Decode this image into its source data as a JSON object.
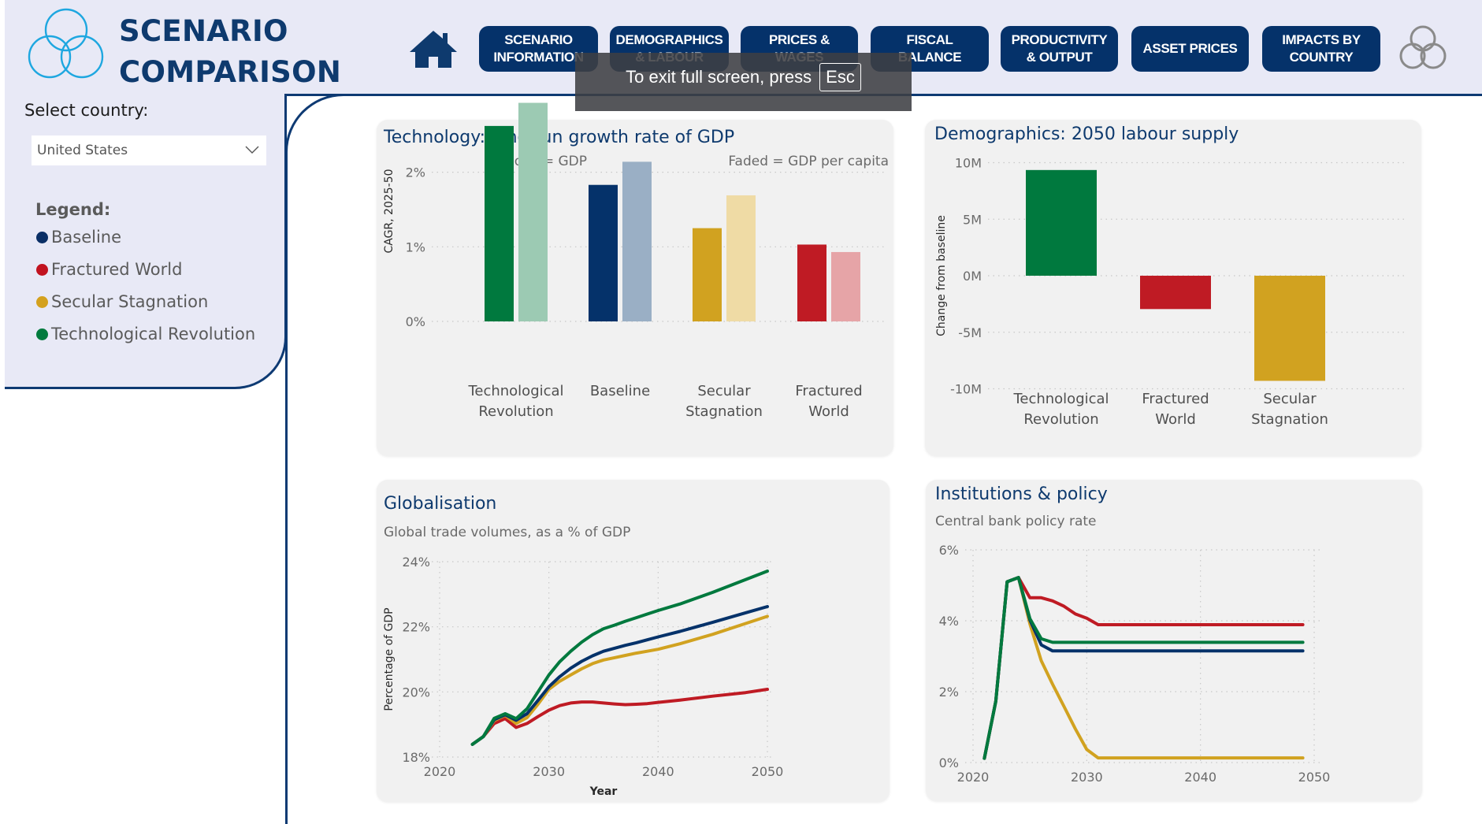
{
  "header": {
    "title_line1": "SCENARIO",
    "title_line2": "COMPARISON",
    "nav": [
      {
        "label": "SCENARIO\nINFORMATION"
      },
      {
        "label": "DEMOGRAPHICS\n& LABOUR"
      },
      {
        "label": "PRICES &\nWAGES"
      },
      {
        "label": "FISCAL\nBALANCE"
      },
      {
        "label": "PRODUCTIVITY\n& OUTPUT"
      },
      {
        "label": "ASSET PRICES"
      },
      {
        "label": "IMPACTS BY\nCOUNTRY"
      }
    ],
    "home_icon": "home-icon",
    "logo_icon": "three-circles-logo"
  },
  "fullscreen_notice": {
    "text": "To exit full screen, press",
    "key": "Esc"
  },
  "sidebar": {
    "select_label": "Select country:",
    "selected_country": "United States",
    "legend_title": "Legend:",
    "legend": [
      {
        "label": "Baseline",
        "color": "#0a2f66"
      },
      {
        "label": "Fractured World",
        "color": "#c1121f"
      },
      {
        "label": "Secular Stagnation",
        "color": "#d4a11e"
      },
      {
        "label": "Technological Revolution",
        "color": "#007a3d"
      }
    ]
  },
  "colors": {
    "baseline": "#05326a",
    "fractured": "#bf1b24",
    "secular": "#d1a220",
    "tech": "#00793e",
    "baseline_faded": "#9aafc5",
    "fractured_faded": "#e6a4a7",
    "secular_faded": "#efdba5",
    "tech_faded": "#9ccab3",
    "nav_bg": "#05326a",
    "title": "#0e3a6e"
  },
  "chart_data": [
    {
      "id": "technology",
      "type": "bar",
      "title": "Technology: long run growth rate of GDP",
      "annotation_solid": "Solid = GDP",
      "annotation_faded": "Faded = GDP per capita",
      "ylabel": "CAGR, 2025-50",
      "xlabel": "",
      "ylim": [
        0,
        3.0
      ],
      "yticks": [
        0,
        1,
        2
      ],
      "ytick_labels": [
        "0%",
        "1%",
        "2%"
      ],
      "grid": true,
      "categories": [
        {
          "label_lines": [
            "Technological",
            "Revolution"
          ],
          "key": "tech"
        },
        {
          "label_lines": [
            "Baseline"
          ],
          "key": "baseline"
        },
        {
          "label_lines": [
            "Secular",
            "Stagnation"
          ],
          "key": "secular"
        },
        {
          "label_lines": [
            "Fractured",
            "World"
          ],
          "key": "fractured"
        }
      ],
      "series": [
        {
          "name": "GDP",
          "values": [
            2.62,
            1.83,
            1.25,
            1.03
          ]
        },
        {
          "name": "GDP per capita",
          "values": [
            2.93,
            2.14,
            1.69,
            0.93
          ]
        }
      ],
      "unit": "%"
    },
    {
      "id": "demographics",
      "type": "bar",
      "title": "Demographics: 2050 labour supply",
      "ylabel": "Change from baseline",
      "xlabel": "",
      "ylim": [
        -10,
        10
      ],
      "yticks": [
        10,
        5,
        0,
        -5,
        -10
      ],
      "ytick_labels": [
        "10M",
        "5M",
        "0M",
        "-5M",
        "-10M"
      ],
      "grid": true,
      "categories": [
        {
          "label_lines": [
            "Technological",
            "Revolution"
          ],
          "key": "tech"
        },
        {
          "label_lines": [
            "Fractured",
            "World"
          ],
          "key": "fractured"
        },
        {
          "label_lines": [
            "Secular",
            "Stagnation"
          ],
          "key": "secular"
        }
      ],
      "values": [
        9.35,
        -2.95,
        -9.3
      ],
      "unit": "M"
    },
    {
      "id": "globalisation",
      "type": "line",
      "title": "Globalisation",
      "subtitle": "Global trade volumes, as a % of GDP",
      "xlabel": "Year",
      "ylabel": "Percentage of GDP",
      "xlim": [
        2020,
        2050
      ],
      "ylim": [
        18,
        24
      ],
      "xticks": [
        2020,
        2030,
        2040,
        2050
      ],
      "yticks": [
        18,
        20,
        22,
        24
      ],
      "ytick_labels": [
        "18%",
        "20%",
        "22%",
        "24%"
      ],
      "grid": true,
      "x": [
        2023,
        2024,
        2025,
        2026,
        2027,
        2028,
        2029,
        2030,
        2031,
        2032,
        2033,
        2034,
        2035,
        2036,
        2037,
        2038,
        2039,
        2040,
        2042,
        2045,
        2048,
        2050
      ],
      "series": [
        {
          "name": "Fractured World",
          "key": "fractured",
          "values": [
            18.39,
            18.63,
            19.03,
            19.18,
            18.91,
            19.03,
            19.24,
            19.44,
            19.58,
            19.66,
            19.69,
            19.69,
            19.66,
            19.63,
            19.61,
            19.62,
            19.64,
            19.68,
            19.75,
            19.87,
            19.98,
            20.08
          ]
        },
        {
          "name": "Secular Stagnation",
          "key": "secular",
          "values": [
            18.39,
            18.63,
            19.12,
            19.28,
            19.03,
            19.21,
            19.62,
            20.08,
            20.33,
            20.52,
            20.71,
            20.87,
            20.98,
            21.05,
            21.12,
            21.19,
            21.25,
            21.31,
            21.48,
            21.77,
            22.1,
            22.32
          ]
        },
        {
          "name": "Baseline",
          "key": "baseline",
          "values": [
            18.39,
            18.63,
            19.15,
            19.3,
            19.13,
            19.33,
            19.74,
            20.16,
            20.47,
            20.73,
            20.94,
            21.11,
            21.25,
            21.34,
            21.43,
            21.51,
            21.6,
            21.69,
            21.86,
            22.14,
            22.43,
            22.62
          ]
        },
        {
          "name": "Technological Revolution",
          "key": "tech",
          "values": [
            18.39,
            18.63,
            19.19,
            19.33,
            19.18,
            19.48,
            20.0,
            20.52,
            20.93,
            21.25,
            21.53,
            21.76,
            21.94,
            22.05,
            22.17,
            22.28,
            22.39,
            22.5,
            22.7,
            23.06,
            23.45,
            23.71
          ]
        }
      ]
    },
    {
      "id": "institutions",
      "type": "line",
      "title": "Institutions & policy",
      "subtitle": "Central bank policy rate",
      "xlabel": "",
      "ylabel": "",
      "xlim": [
        2020,
        2050
      ],
      "ylim": [
        0,
        6
      ],
      "xticks": [
        2020,
        2030,
        2040,
        2050
      ],
      "yticks": [
        0,
        2,
        4,
        6
      ],
      "ytick_labels": [
        "0%",
        "2%",
        "4%",
        "6%"
      ],
      "grid": true,
      "x": [
        2021,
        2022,
        2023,
        2024,
        2025,
        2026,
        2027,
        2028,
        2029,
        2030,
        2031,
        2049
      ],
      "series": [
        {
          "name": "Fractured World",
          "key": "fractured",
          "values": [
            0.12,
            1.73,
            5.1,
            5.22,
            4.65,
            4.65,
            4.56,
            4.41,
            4.19,
            4.07,
            3.89,
            3.89
          ]
        },
        {
          "name": "Secular Stagnation",
          "key": "secular",
          "values": [
            0.12,
            1.73,
            5.1,
            5.22,
            3.91,
            2.87,
            2.21,
            1.58,
            0.95,
            0.37,
            0.13,
            0.13
          ]
        },
        {
          "name": "Baseline",
          "key": "baseline",
          "values": [
            0.12,
            1.73,
            5.1,
            5.22,
            4.02,
            3.32,
            3.15,
            3.15,
            3.15,
            3.15,
            3.15,
            3.15
          ]
        },
        {
          "name": "Technological Revolution",
          "key": "tech",
          "values": [
            0.12,
            1.73,
            5.1,
            5.22,
            4.06,
            3.49,
            3.39,
            3.39,
            3.39,
            3.39,
            3.39,
            3.39
          ]
        }
      ]
    }
  ]
}
